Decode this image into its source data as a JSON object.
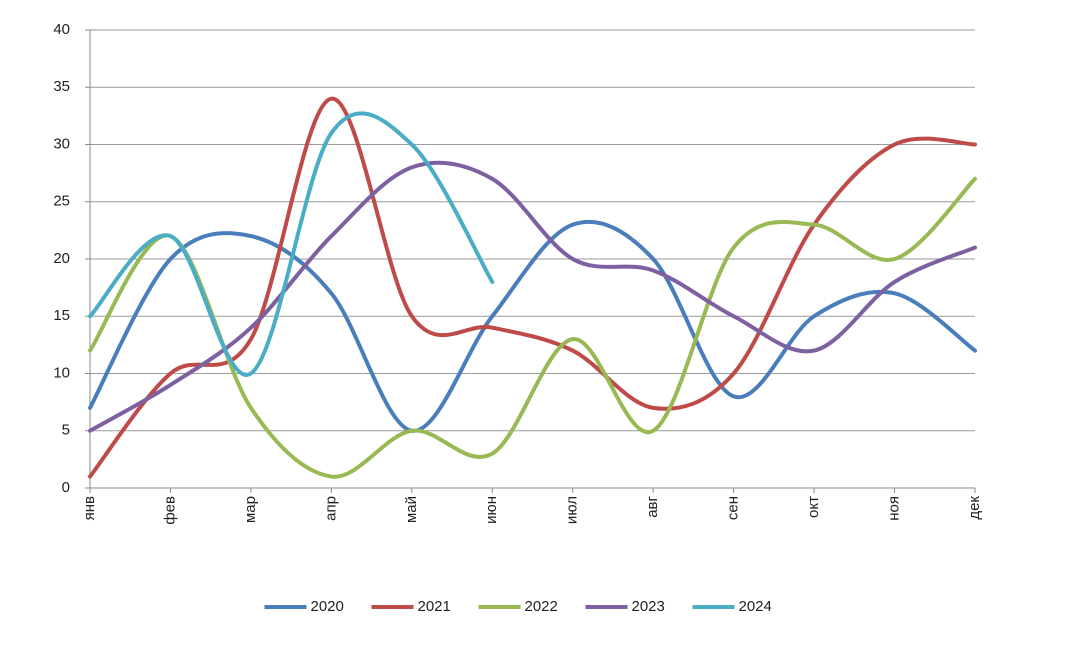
{
  "chart_data": {
    "type": "line",
    "categories": [
      "янв",
      "фев",
      "мар",
      "апр",
      "май",
      "июн",
      "июл",
      "авг",
      "сен",
      "окт",
      "ноя",
      "дек"
    ],
    "series": [
      {
        "name": "2020",
        "color": "#4a7ebb",
        "values": [
          7,
          20,
          22,
          17,
          5,
          15,
          23,
          20,
          8,
          15,
          17,
          12
        ]
      },
      {
        "name": "2021",
        "color": "#be4b48",
        "values": [
          1,
          10,
          13,
          34,
          15,
          14,
          12,
          7,
          10,
          23,
          30,
          30
        ]
      },
      {
        "name": "2022",
        "color": "#98b954",
        "values": [
          12,
          22,
          7,
          1,
          5,
          3,
          13,
          5,
          21,
          23,
          20,
          27
        ]
      },
      {
        "name": "2023",
        "color": "#7d60a0",
        "values": [
          5,
          9,
          14,
          22,
          28,
          27,
          20,
          19,
          15,
          12,
          18,
          21
        ]
      },
      {
        "name": "2024",
        "color": "#4bacc6",
        "values": [
          15,
          22,
          10,
          31,
          30,
          18,
          null,
          null,
          null,
          null,
          null,
          null
        ]
      }
    ],
    "ylim": [
      0,
      40
    ],
    "yticks": [
      0,
      5,
      10,
      15,
      20,
      25,
      30,
      35,
      40
    ],
    "grid": true,
    "smooth": true,
    "legend": "bottom"
  }
}
